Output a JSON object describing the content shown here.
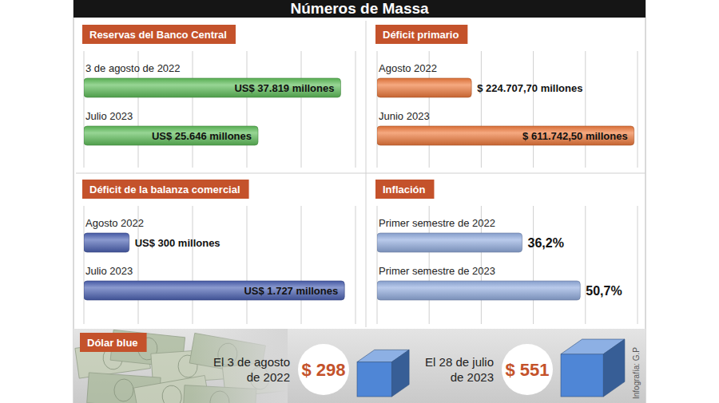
{
  "title": "Números de Massa",
  "credit": "Infografía: G.P",
  "chart_data": [
    {
      "type": "bar",
      "orientation": "horizontal",
      "title": "Reservas del Banco Central",
      "categories": [
        "3 de agosto de 2022",
        "Julio 2023"
      ],
      "values": [
        37819,
        25646
      ],
      "value_labels": [
        "US$ 37.819 millones",
        "US$ 25.646 millones"
      ],
      "color": "#5fbf5a",
      "xlim": [
        0,
        40000
      ],
      "xticks": [
        0,
        8000,
        16000,
        24000,
        32000,
        40000
      ],
      "grid": true,
      "data_labels": true,
      "tick_labels": false
    },
    {
      "type": "bar",
      "orientation": "horizontal",
      "title": "Déficit primario",
      "categories": [
        "Agosto 2022",
        "Junio 2023"
      ],
      "values": [
        224707.7,
        611742.5
      ],
      "value_labels": [
        "$ 224.707,70 millones",
        "$ 611.742,50 millones"
      ],
      "color": "#f07a3c",
      "xlim": [
        0,
        620000
      ],
      "xticks": [
        0,
        124000,
        248000,
        372000,
        496000,
        620000
      ],
      "grid": true,
      "data_labels": true,
      "tick_labels": false
    },
    {
      "type": "bar",
      "orientation": "horizontal",
      "title": "Déficit de la balanza comercial",
      "categories": [
        "Agosto 2022",
        "Julio 2023"
      ],
      "values": [
        300,
        1727
      ],
      "value_labels": [
        "US$ 300 millones",
        "US$ 1.727 millones"
      ],
      "color": "#4d63b5",
      "xlim": [
        0,
        1800
      ],
      "xticks": [
        0,
        360,
        720,
        1080,
        1440,
        1800
      ],
      "grid": true,
      "data_labels": true,
      "tick_labels": false
    },
    {
      "type": "bar",
      "orientation": "horizontal",
      "title": "Inflación",
      "categories": [
        "Primer semestre de 2022",
        "Primer semestre de 2023"
      ],
      "values": [
        36.2,
        50.7
      ],
      "value_labels": [
        "36,2%",
        "50,7%"
      ],
      "color": "#94aee0",
      "xlim": [
        0,
        65
      ],
      "xticks": [
        0,
        13,
        26,
        39,
        52,
        65
      ],
      "grid": true,
      "data_labels": true,
      "tick_labels": false
    },
    {
      "type": "pictogram",
      "title": "Dólar blue",
      "categories": [
        "El 3 de agosto de 2022",
        "El 28 de julio de 2023"
      ],
      "values": [
        298,
        551
      ],
      "value_labels": [
        "$ 298",
        "$ 551"
      ],
      "color": "#4f86d6",
      "data_labels": true
    }
  ]
}
